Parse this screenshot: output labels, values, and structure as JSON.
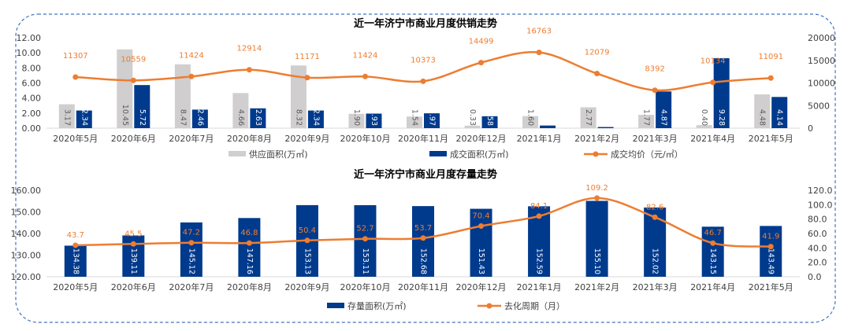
{
  "chart_data": [
    {
      "type": "bar",
      "title": "近一年济宁市商业月度供销走势",
      "categories": [
        "2020年5月",
        "2020年6月",
        "2020年7月",
        "2020年8月",
        "2020年9月",
        "2020年10月",
        "2020年11月",
        "2020年12月",
        "2021年1月",
        "2021年2月",
        "2021年3月",
        "2021年4月",
        "2021年5月"
      ],
      "ylim": [
        0,
        12
      ],
      "yticks": [
        "0.00",
        "2.00",
        "4.00",
        "6.00",
        "8.00",
        "10.00",
        "12.00"
      ],
      "y2lim": [
        0,
        20000
      ],
      "y2ticks": [
        "0",
        "5000",
        "10000",
        "15000",
        "20000"
      ],
      "legend_position": "bottom",
      "series": [
        {
          "name": "供应面积(万㎡)",
          "kind": "bar",
          "axis": "left",
          "color": "#d0cece",
          "values": [
            3.17,
            10.45,
            8.47,
            4.66,
            8.32,
            1.9,
            1.54,
            0.33,
            1.6,
            2.77,
            1.77,
            0.4,
            4.48
          ],
          "labels": [
            "3.17",
            "10.45",
            "8.47",
            "4.66",
            "8.32",
            "1.90",
            "1.54",
            "0.33",
            "1.60",
            "2.77",
            "1.77",
            "0.40",
            "4.48"
          ]
        },
        {
          "name": "成交面积(万㎡)",
          "kind": "bar",
          "axis": "left",
          "color": "#003a8c",
          "values": [
            2.34,
            5.72,
            2.46,
            2.63,
            2.34,
            1.93,
            1.97,
            1.58,
            0.35,
            0.15,
            4.87,
            9.28,
            4.14
          ],
          "labels": [
            "2.34",
            "5.72",
            "2.46",
            "2.63",
            "2.34",
            "1.93",
            "1.97",
            "1.58",
            "",
            "",
            "4.87",
            "9.28",
            "4.14"
          ]
        },
        {
          "name": "成交均价（元/㎡）",
          "kind": "line",
          "axis": "right",
          "color": "#ed7d31",
          "values": [
            11307,
            10559,
            11424,
            12914,
            11171,
            11424,
            10373,
            14499,
            16763,
            12079,
            8392,
            10134,
            11091
          ],
          "labels": [
            "11307",
            "10559",
            "11424",
            "12914",
            "11171",
            "11424",
            "10373",
            "14499",
            "16763",
            "12079",
            "8392",
            "10134",
            "11091"
          ]
        }
      ]
    },
    {
      "type": "bar",
      "title": "近一年济宁市商业月度存量走势",
      "categories": [
        "2020年5月",
        "2020年6月",
        "2020年7月",
        "2020年8月",
        "2020年9月",
        "2020年10月",
        "2020年11月",
        "2020年12月",
        "2021年1月",
        "2021年2月",
        "2021年3月",
        "2021年4月",
        "2021年5月"
      ],
      "ylim": [
        120,
        160
      ],
      "yticks": [
        "120.00",
        "130.00",
        "140.00",
        "150.00",
        "160.00"
      ],
      "y2lim": [
        0,
        120
      ],
      "y2ticks": [
        "0.0",
        "20.0",
        "40.0",
        "60.0",
        "80.0",
        "100.0",
        "120.0"
      ],
      "legend_position": "bottom",
      "series": [
        {
          "name": "存量面积(万㎡)",
          "kind": "bar",
          "axis": "left",
          "color": "#003a8c",
          "values": [
            134.38,
            139.11,
            145.12,
            147.16,
            153.13,
            153.11,
            152.68,
            151.43,
            152.59,
            155.1,
            152.02,
            143.15,
            143.49
          ],
          "labels": [
            "134.38",
            "139.11",
            "145.12",
            "147.16",
            "153.13",
            "153.11",
            "152.68",
            "151.43",
            "152.59",
            "155.10",
            "152.02",
            "143.15",
            "143.49"
          ]
        },
        {
          "name": "去化周期（月）",
          "kind": "line",
          "axis": "right",
          "color": "#ed7d31",
          "values": [
            43.7,
            45.5,
            47.2,
            46.8,
            50.4,
            52.7,
            53.7,
            70.4,
            84.1,
            109.2,
            82.6,
            46.7,
            41.9
          ],
          "labels": [
            "43.7",
            "45.5",
            "47.2",
            "46.8",
            "50.4",
            "52.7",
            "53.7",
            "70.4",
            "84.1",
            "109.2",
            "82.6",
            "46.7",
            "41.9"
          ]
        }
      ]
    }
  ]
}
